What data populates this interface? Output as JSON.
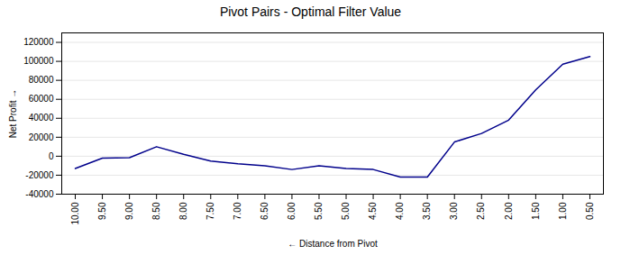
{
  "chart_data": {
    "type": "line",
    "title": "Pivot Pairs - Optimal Filter Value",
    "xlabel": "Distance from Pivot",
    "ylabel": "Net Profit",
    "x": [
      10.0,
      9.5,
      9.0,
      8.5,
      8.0,
      7.5,
      7.0,
      6.5,
      6.0,
      5.5,
      5.0,
      4.5,
      4.0,
      3.5,
      3.0,
      2.5,
      2.0,
      1.5,
      1.0,
      0.5
    ],
    "values": [
      -13000,
      -2000,
      -1500,
      10000,
      2000,
      -5000,
      -8000,
      -10000,
      -14000,
      -10000,
      -13000,
      -14000,
      -22000,
      -22000,
      15000,
      24000,
      38000,
      70000,
      97000,
      105000
    ],
    "color": "#00008B",
    "xlim": [
      10.25,
      0.25
    ],
    "xticks": [
      {
        "value": 10.0,
        "label": "10.00"
      },
      {
        "value": 9.5,
        "label": "9.50"
      },
      {
        "value": 9.0,
        "label": "9.00"
      },
      {
        "value": 8.5,
        "label": "8.50"
      },
      {
        "value": 8.0,
        "label": "8.00"
      },
      {
        "value": 7.5,
        "label": "7.50"
      },
      {
        "value": 7.0,
        "label": "7.00"
      },
      {
        "value": 6.5,
        "label": "6.50"
      },
      {
        "value": 6.0,
        "label": "6.00"
      },
      {
        "value": 5.5,
        "label": "5.50"
      },
      {
        "value": 5.0,
        "label": "5.00"
      },
      {
        "value": 4.5,
        "label": "4.50"
      },
      {
        "value": 4.0,
        "label": "4.00"
      },
      {
        "value": 3.5,
        "label": "3.50"
      },
      {
        "value": 3.0,
        "label": "3.00"
      },
      {
        "value": 2.5,
        "label": "2.50"
      },
      {
        "value": 2.0,
        "label": "2.00"
      },
      {
        "value": 1.5,
        "label": "1.50"
      },
      {
        "value": 1.0,
        "label": "1.00"
      },
      {
        "value": 0.5,
        "label": "0.50"
      }
    ],
    "ylim": [
      -40000,
      130000
    ],
    "yticks": [
      -40000,
      -20000,
      0,
      20000,
      40000,
      60000,
      80000,
      100000,
      120000
    ],
    "grid": "y"
  }
}
